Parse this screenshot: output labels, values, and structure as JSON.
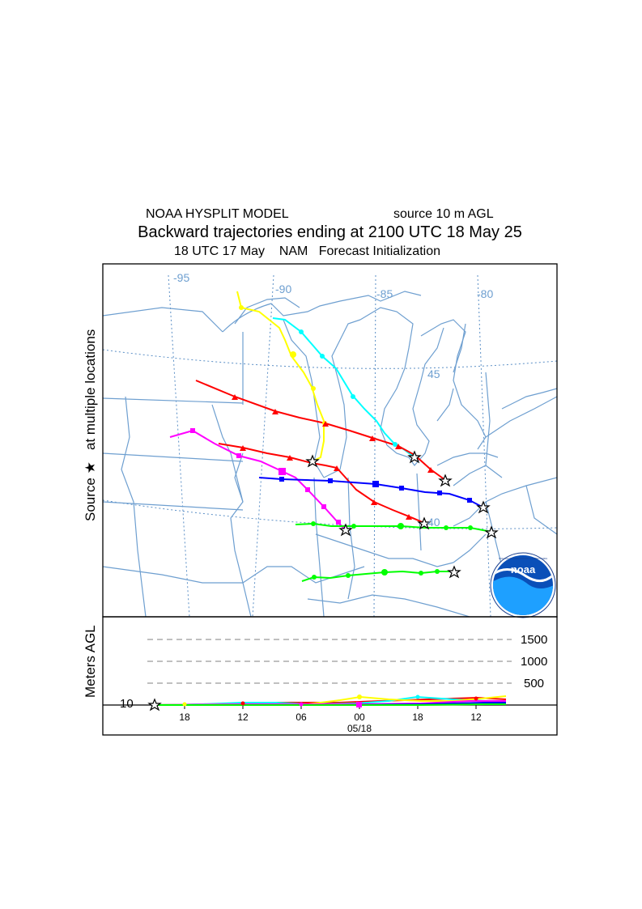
{
  "header": {
    "model": "NOAA HYSPLIT MODEL",
    "source": "source 10 m AGL",
    "trajectory_title": "Backward trajectories ending at 2100 UTC 18 May 25",
    "init_line": "18 UTC 17 May    NAM   Forecast Initialization"
  },
  "map": {
    "side_label": "Source ★   at multiple locations",
    "longitude_labels": [
      "-95",
      "-90",
      "-85",
      "-80"
    ],
    "latitude_labels": [
      "45",
      "40"
    ],
    "logo_text": "noaa",
    "logo_ring_text": "NATIONAL OCEANIC AND ATMOSPHERIC ADMINISTRATION • U.S. DEPARTMENT OF COMMERCE",
    "colors": {
      "yellow": "#ffff00",
      "cyan": "#00ffff",
      "red": "#ff0000",
      "magenta": "#ff00ff",
      "blue": "#0000ff",
      "green": "#00ff00",
      "borders": "#6e9fd0"
    }
  },
  "height_panel": {
    "ylabel": "Meters AGL",
    "levels": [
      "1500",
      "1000",
      "500"
    ],
    "base_level": "10",
    "time_ticks": [
      "18",
      "12",
      "06",
      "00",
      "18",
      "12"
    ],
    "date_label": "05/18"
  }
}
